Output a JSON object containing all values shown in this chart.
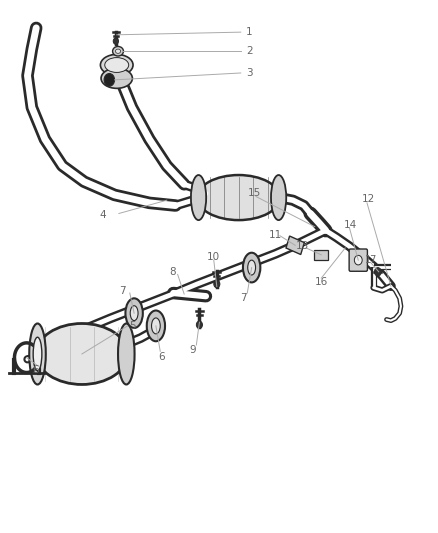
{
  "background_color": "#ffffff",
  "line_color": "#2a2a2a",
  "label_color": "#666666",
  "label_fontsize": 7.5,
  "fig_width": 4.38,
  "fig_height": 5.33,
  "dpi": 100
}
